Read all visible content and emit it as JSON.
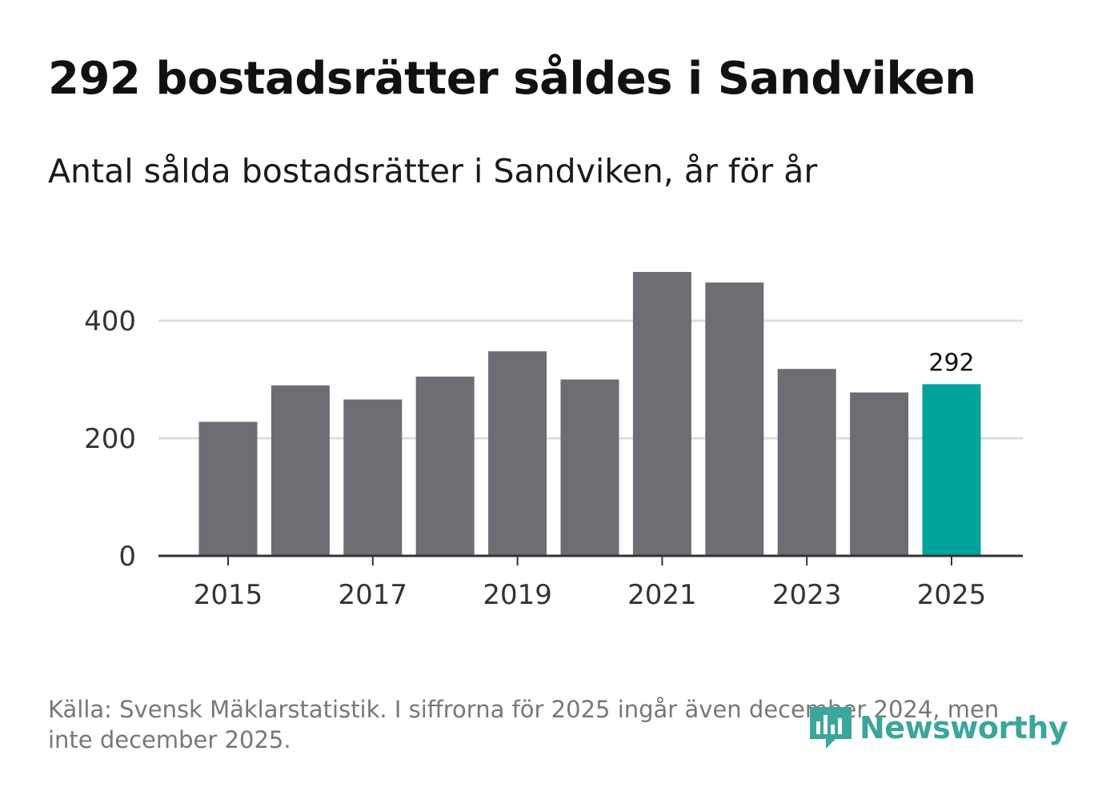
{
  "header": {
    "title": "292 bostadsrätter såldes i Sandviken",
    "subtitle": "Antal sålda bostadsrätter i Sandviken, år för år"
  },
  "footer": {
    "source": "Källa: Svensk Mäklarstatistik. I siffrorna för 2025 ingår även december 2024, men inte december 2025.",
    "brand": "Newsworthy"
  },
  "colors": {
    "bar": "#6e6d73",
    "highlight": "#00a49a",
    "grid": "#dddddd",
    "axis": "#333333",
    "brand": "#3aa69c"
  },
  "chart_data": {
    "type": "bar",
    "title": "292 bostadsrätter såldes i Sandviken",
    "subtitle": "Antal sålda bostadsrätter i Sandviken, år för år",
    "xlabel": "",
    "ylabel": "",
    "categories": [
      "2015",
      "2016",
      "2017",
      "2018",
      "2019",
      "2020",
      "2021",
      "2022",
      "2023",
      "2024",
      "2025"
    ],
    "values": [
      228,
      290,
      266,
      305,
      348,
      300,
      483,
      465,
      318,
      278,
      292
    ],
    "highlight_index": 10,
    "highlight_label": "292",
    "ylim": [
      0,
      480
    ],
    "yticks": [
      0,
      200,
      400
    ],
    "xtick_labels": [
      "2015",
      "2017",
      "2019",
      "2021",
      "2023",
      "2025"
    ],
    "grid": true,
    "legend": "none"
  }
}
